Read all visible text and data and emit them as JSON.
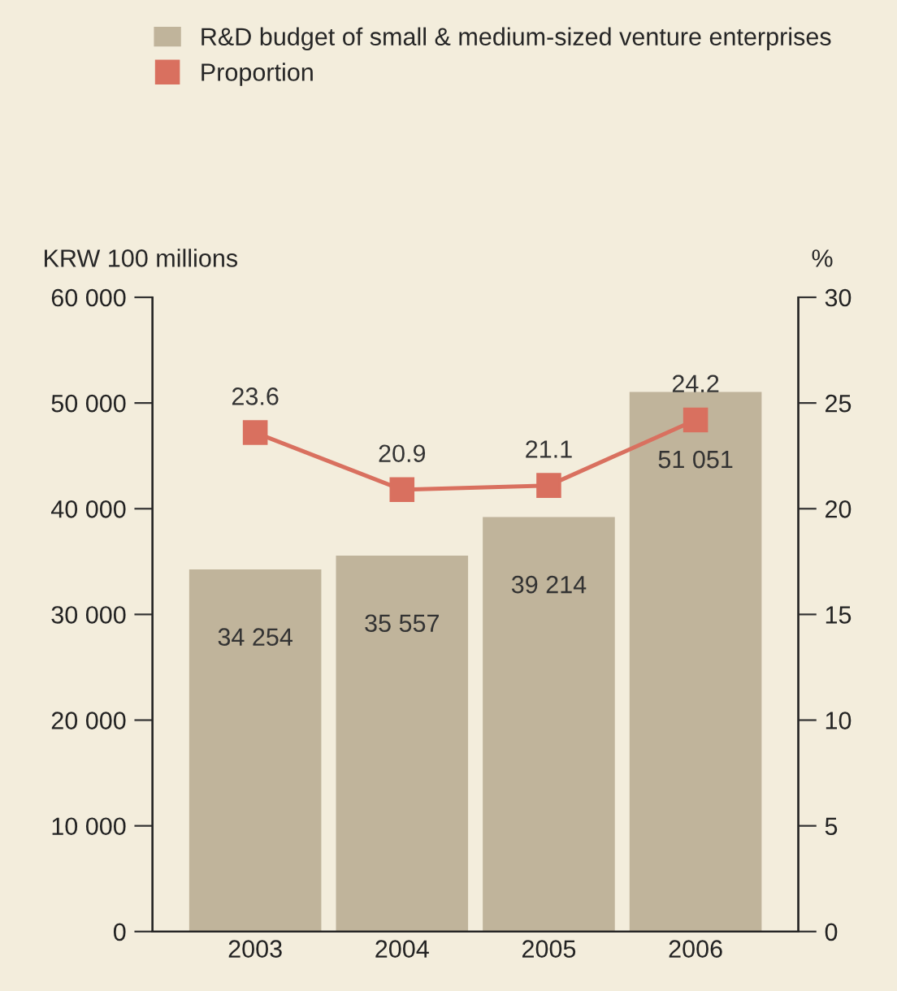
{
  "chart_data": {
    "type": "bar",
    "categories": [
      "2003",
      "2004",
      "2005",
      "2006"
    ],
    "series": [
      {
        "name": "R&D budget of small & medium-sized venture enterprises",
        "color": "#c0b49b",
        "values": [
          34254,
          35557,
          39214,
          51051
        ],
        "value_labels": [
          "34 254",
          "35 557",
          "39 214",
          "51 051"
        ]
      },
      {
        "name": "Proportion",
        "type": "line",
        "axis": "y2",
        "color": "#d9705f",
        "marker": "square",
        "values": [
          23.6,
          20.9,
          21.1,
          24.2
        ],
        "value_labels": [
          "23.6",
          "20.9",
          "21.1",
          "24.2"
        ]
      }
    ],
    "ylabel": "KRW 100 millions",
    "y2label": "%",
    "ylim": [
      0,
      60000
    ],
    "yticks": [
      0,
      {
        "value": 10000,
        "label": "10 000"
      },
      {
        "value": 20000,
        "label": "20 000"
      },
      {
        "value": 30000,
        "label": "30 000"
      },
      {
        "value": 40000,
        "label": "40 000"
      },
      {
        "value": 50000,
        "label": "50 000"
      },
      {
        "value": 60000,
        "label": "60 000"
      }
    ],
    "y2lim": [
      0,
      30
    ],
    "y2ticks": [
      0,
      5,
      10,
      15,
      20,
      25,
      30
    ],
    "legend": "top",
    "grid": false
  }
}
